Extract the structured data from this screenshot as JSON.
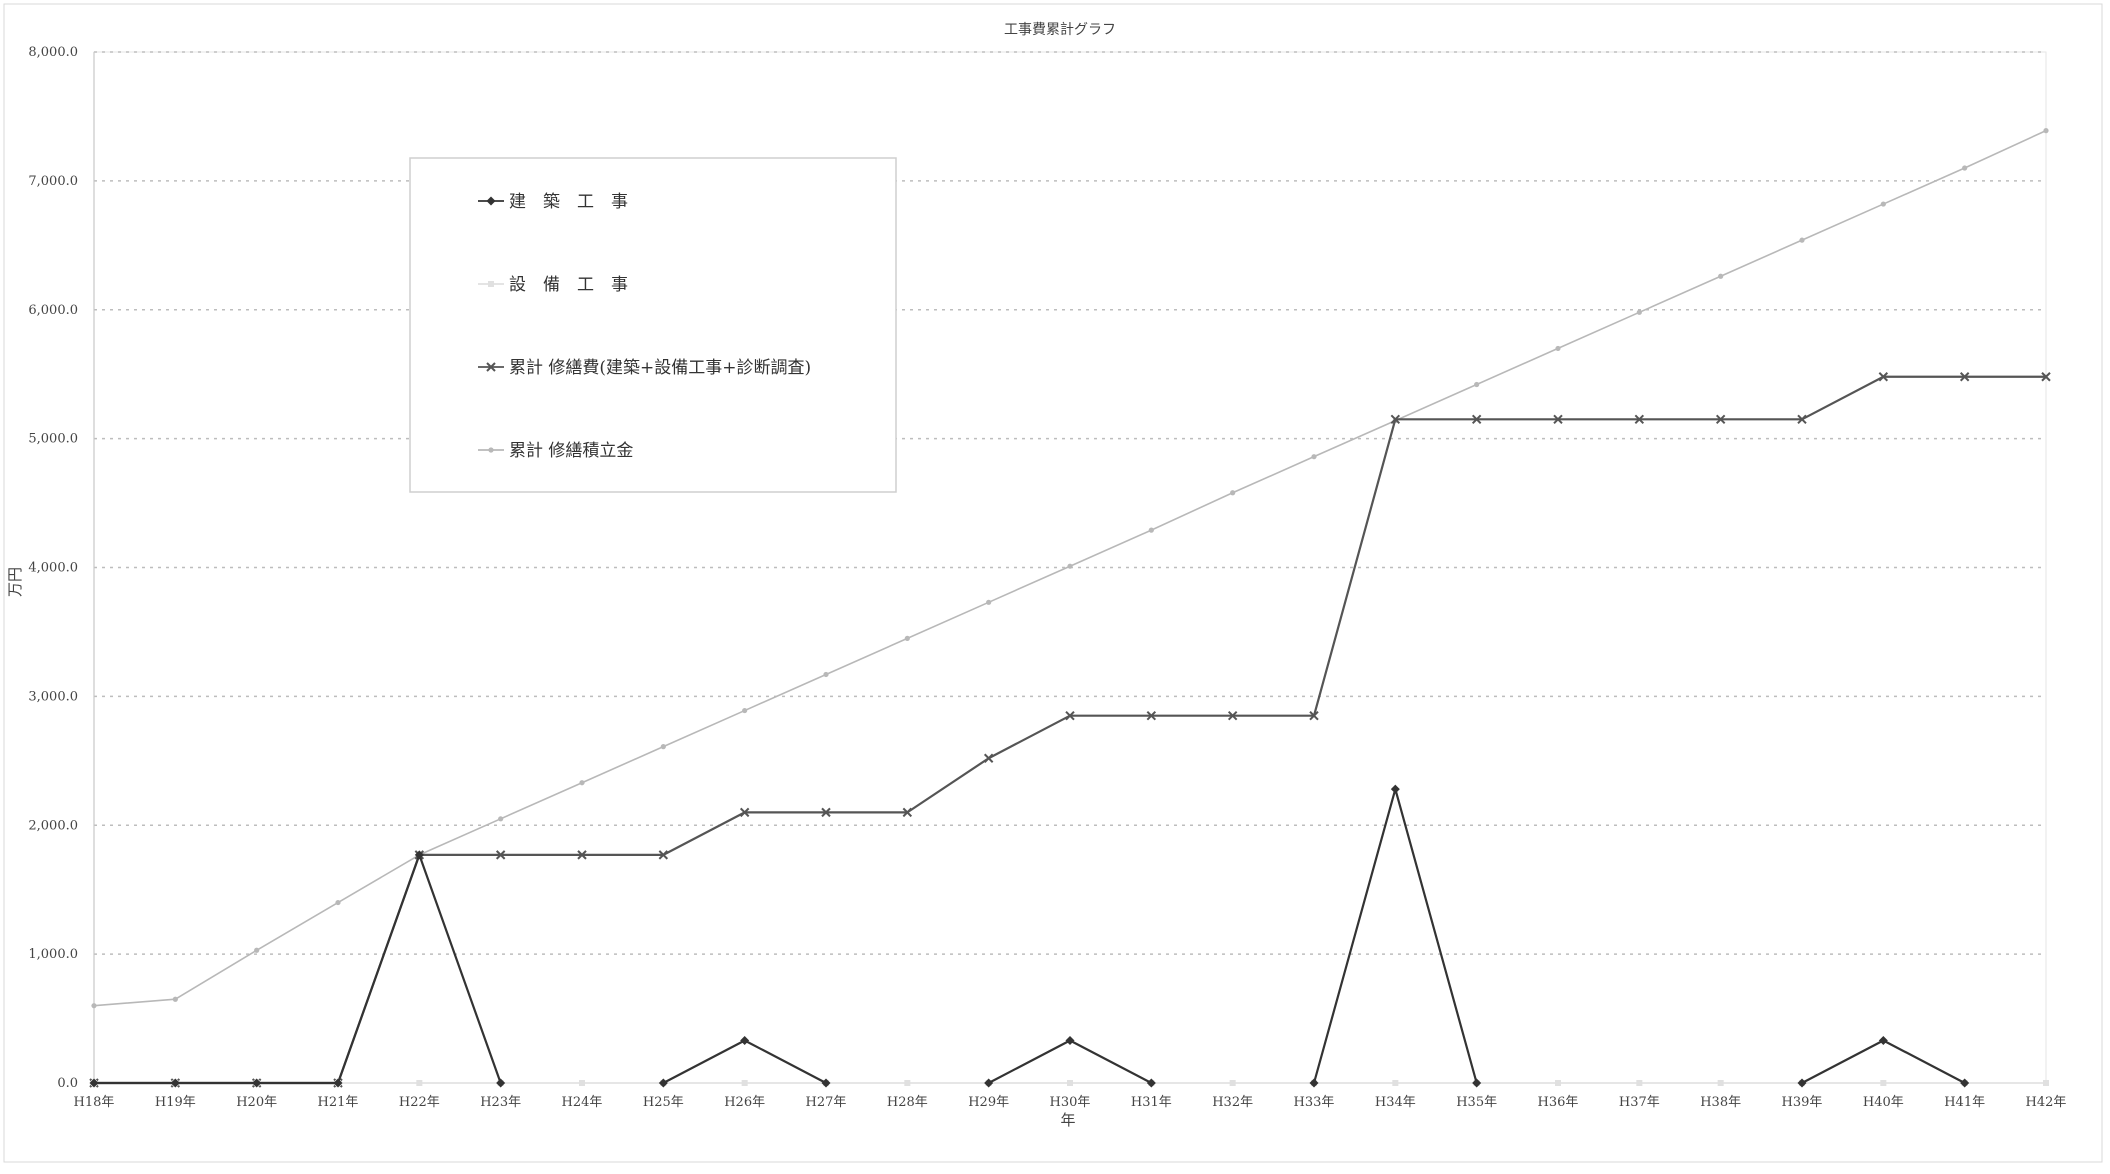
{
  "chart_data": {
    "type": "line",
    "title": "工事費累計グラフ",
    "xlabel": "年",
    "ylabel": "万円",
    "ylim": [
      0,
      8000
    ],
    "ytick_labels": [
      "0.0",
      "1,000.0",
      "2,000.0",
      "3,000.0",
      "4,000.0",
      "5,000.0",
      "6,000.0",
      "7,000.0",
      "8,000.0"
    ],
    "grid": true,
    "legend_position": "top-left",
    "categories": [
      "H18年",
      "H19年",
      "H20年",
      "H21年",
      "H22年",
      "H23年",
      "H24年",
      "H25年",
      "H26年",
      "H27年",
      "H28年",
      "H29年",
      "H30年",
      "H31年",
      "H32年",
      "H33年",
      "H34年",
      "H35年",
      "H36年",
      "H37年",
      "H38年",
      "H39年",
      "H40年",
      "H41年",
      "H42年"
    ],
    "series": [
      {
        "name": "建　築　工　事",
        "marker": "diamond",
        "color": "#333333",
        "values": [
          0,
          0,
          0,
          0,
          1770,
          0,
          null,
          0,
          330,
          0,
          null,
          0,
          330,
          0,
          null,
          0,
          2280,
          0,
          null,
          null,
          null,
          0,
          330,
          0,
          null
        ]
      },
      {
        "name": "設　備　工　事",
        "marker": "square",
        "color": "#e0e0e0",
        "values": [
          0,
          0,
          0,
          0,
          0,
          0,
          0,
          0,
          0,
          0,
          0,
          0,
          0,
          0,
          0,
          0,
          0,
          0,
          0,
          0,
          0,
          0,
          0,
          0,
          0
        ]
      },
      {
        "name": "累計 修繕費(建築+設備工事+診断調査)",
        "marker": "x",
        "color": "#555555",
        "values": [
          0,
          0,
          0,
          0,
          1770,
          1770,
          1770,
          1770,
          2100,
          2100,
          2100,
          2520,
          2850,
          2850,
          2850,
          2850,
          5150,
          5150,
          5150,
          5150,
          5150,
          5150,
          5480,
          5480,
          5480
        ]
      },
      {
        "name": "累計 修繕積立金",
        "marker": "dot",
        "color": "#b8b8b8",
        "values": [
          600,
          650,
          1030,
          1400,
          1770,
          2050,
          2330,
          2610,
          2890,
          3170,
          3450,
          3730,
          4010,
          4290,
          4580,
          4860,
          5140,
          5420,
          5700,
          5980,
          6260,
          6540,
          6820,
          7100,
          7390
        ]
      }
    ]
  }
}
